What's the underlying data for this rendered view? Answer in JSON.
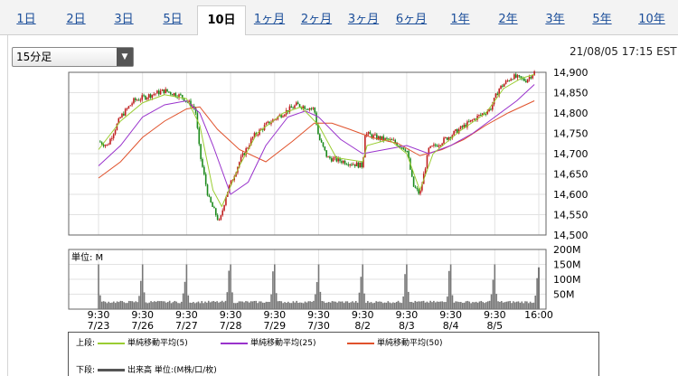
{
  "tabs": [
    {
      "label": "1日",
      "active": false
    },
    {
      "label": "2日",
      "active": false
    },
    {
      "label": "3日",
      "active": false
    },
    {
      "label": "5日",
      "active": false
    },
    {
      "label": "10日",
      "active": true
    },
    {
      "label": "1ヶ月",
      "active": false
    },
    {
      "label": "2ヶ月",
      "active": false
    },
    {
      "label": "3ヶ月",
      "active": false
    },
    {
      "label": "6ヶ月",
      "active": false
    },
    {
      "label": "1年",
      "active": false
    },
    {
      "label": "2年",
      "active": false
    },
    {
      "label": "3年",
      "active": false
    },
    {
      "label": "5年",
      "active": false
    },
    {
      "label": "10年",
      "active": false
    }
  ],
  "interval_select": {
    "value": "15分足"
  },
  "datetime": "21/08/05 17:15 EST",
  "colors": {
    "candle_up": "#c02020",
    "candle_down": "#1c8a1c",
    "ma5": "#9acd32",
    "ma25": "#9932cc",
    "ma50": "#e0522c",
    "volume": "#777777"
  },
  "chart_data": {
    "type": "candlestick",
    "price_axis": {
      "ticks": [
        "14,900",
        "14,850",
        "14,800",
        "14,750",
        "14,700",
        "14,650",
        "14,600",
        "14,550",
        "14,500"
      ],
      "ylim": [
        14500,
        14900
      ]
    },
    "volume_axis": {
      "label": "単位: M",
      "ticks": [
        "200M",
        "150M",
        "100M",
        "50M"
      ],
      "ylim": [
        0,
        200
      ]
    },
    "x_labels": [
      {
        "time": "9:30",
        "date": "7/23"
      },
      {
        "time": "9:30",
        "date": "7/26"
      },
      {
        "time": "9:30",
        "date": "7/27"
      },
      {
        "time": "9:30",
        "date": "7/28"
      },
      {
        "time": "9:30",
        "date": "7/29"
      },
      {
        "time": "9:30",
        "date": "7/30"
      },
      {
        "time": "9:30",
        "date": "8/2"
      },
      {
        "time": "9:30",
        "date": "8/3"
      },
      {
        "time": "9:30",
        "date": "8/4"
      },
      {
        "time": "9:30",
        "date": "8/5"
      },
      {
        "time": "16:00",
        "date": ""
      }
    ],
    "price_path": [
      [
        0,
        14730
      ],
      [
        0.2,
        14720
      ],
      [
        0.5,
        14790
      ],
      [
        0.8,
        14830
      ],
      [
        1.2,
        14845
      ],
      [
        1.5,
        14855
      ],
      [
        1.9,
        14840
      ],
      [
        2.2,
        14810
      ],
      [
        2.3,
        14700
      ],
      [
        2.5,
        14590
      ],
      [
        2.75,
        14530
      ],
      [
        2.9,
        14600
      ],
      [
        3.2,
        14680
      ],
      [
        3.5,
        14740
      ],
      [
        3.8,
        14770
      ],
      [
        4.2,
        14800
      ],
      [
        4.5,
        14820
      ],
      [
        4.9,
        14810
      ],
      [
        5.0,
        14740
      ],
      [
        5.2,
        14690
      ],
      [
        5.6,
        14680
      ],
      [
        6.0,
        14670
      ],
      [
        6.05,
        14750
      ],
      [
        6.3,
        14740
      ],
      [
        6.7,
        14730
      ],
      [
        7.0,
        14710
      ],
      [
        7.15,
        14620
      ],
      [
        7.3,
        14600
      ],
      [
        7.5,
        14710
      ],
      [
        7.8,
        14730
      ],
      [
        8.2,
        14760
      ],
      [
        8.6,
        14790
      ],
      [
        8.9,
        14810
      ],
      [
        9.1,
        14860
      ],
      [
        9.4,
        14890
      ],
      [
        9.7,
        14880
      ],
      [
        9.9,
        14900
      ]
    ],
    "moving_averages": [
      {
        "name": "単純移動平均(5)",
        "values": [
          [
            0,
            14710
          ],
          [
            0.5,
            14780
          ],
          [
            1,
            14825
          ],
          [
            1.5,
            14845
          ],
          [
            2,
            14835
          ],
          [
            2.3,
            14770
          ],
          [
            2.6,
            14610
          ],
          [
            2.8,
            14570
          ],
          [
            3.2,
            14670
          ],
          [
            3.6,
            14750
          ],
          [
            4.2,
            14800
          ],
          [
            4.6,
            14815
          ],
          [
            5,
            14770
          ],
          [
            5.4,
            14690
          ],
          [
            6,
            14680
          ],
          [
            6.1,
            14720
          ],
          [
            6.6,
            14735
          ],
          [
            7,
            14700
          ],
          [
            7.3,
            14610
          ],
          [
            7.6,
            14700
          ],
          [
            8.2,
            14755
          ],
          [
            8.8,
            14800
          ],
          [
            9.2,
            14860
          ],
          [
            9.6,
            14885
          ],
          [
            9.9,
            14895
          ]
        ]
      },
      {
        "name": "単純移動平均(25)",
        "values": [
          [
            0,
            14670
          ],
          [
            0.5,
            14720
          ],
          [
            1,
            14790
          ],
          [
            1.5,
            14820
          ],
          [
            2,
            14830
          ],
          [
            2.3,
            14800
          ],
          [
            2.6,
            14720
          ],
          [
            3,
            14600
          ],
          [
            3.4,
            14630
          ],
          [
            3.8,
            14720
          ],
          [
            4.3,
            14790
          ],
          [
            4.7,
            14805
          ],
          [
            5,
            14790
          ],
          [
            5.5,
            14735
          ],
          [
            6,
            14700
          ],
          [
            6.5,
            14710
          ],
          [
            7,
            14720
          ],
          [
            7.5,
            14700
          ],
          [
            8,
            14720
          ],
          [
            8.5,
            14750
          ],
          [
            9,
            14790
          ],
          [
            9.5,
            14830
          ],
          [
            9.9,
            14870
          ]
        ]
      },
      {
        "name": "単純移動平均(50)",
        "values": [
          [
            0,
            14640
          ],
          [
            0.5,
            14680
          ],
          [
            1,
            14740
          ],
          [
            1.5,
            14780
          ],
          [
            2,
            14810
          ],
          [
            2.3,
            14815
          ],
          [
            2.7,
            14760
          ],
          [
            3.2,
            14710
          ],
          [
            3.8,
            14680
          ],
          [
            4.4,
            14730
          ],
          [
            4.9,
            14775
          ],
          [
            5.3,
            14775
          ],
          [
            5.7,
            14760
          ],
          [
            6.2,
            14740
          ],
          [
            6.8,
            14725
          ],
          [
            7.3,
            14695
          ],
          [
            7.8,
            14710
          ],
          [
            8.3,
            14735
          ],
          [
            8.8,
            14770
          ],
          [
            9.3,
            14800
          ],
          [
            9.9,
            14830
          ]
        ]
      }
    ],
    "volume_spike": {
      "open": 150,
      "close": 130
    },
    "volume_base": 20
  },
  "legend": {
    "upper_label": "上段:",
    "lower_label": "下段:",
    "ma5": "単純移動平均(5)",
    "ma25": "単純移動平均(25)",
    "ma50": "単純移動平均(50)",
    "volume": "出来高 単位:(M株/口/枚)"
  }
}
